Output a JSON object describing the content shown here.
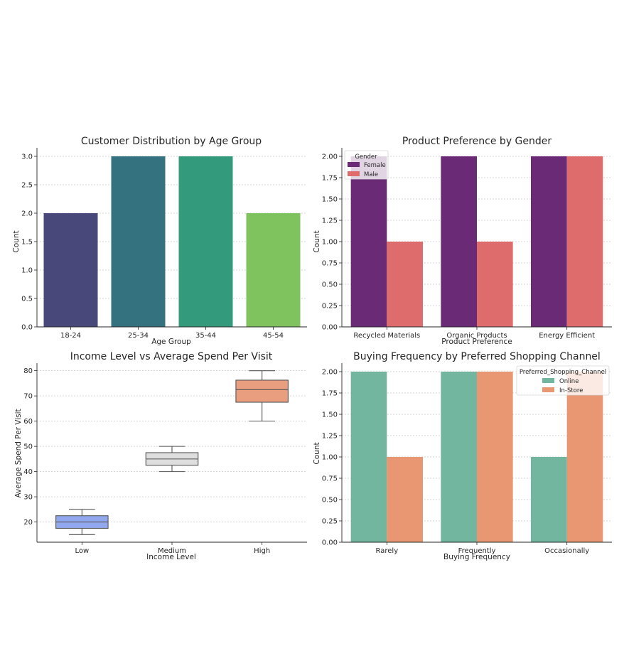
{
  "chart_data": [
    {
      "type": "bar",
      "title": "Customer Distribution by Age Group",
      "xlabel": "Age Group",
      "ylabel": "Count",
      "categories": [
        "18-24",
        "25-34",
        "35-44",
        "45-54"
      ],
      "values": [
        2,
        3,
        3,
        2
      ],
      "colors": [
        "#48487a",
        "#35727f",
        "#339a7b",
        "#7fc35e"
      ],
      "ylim": [
        0,
        3.15
      ],
      "yticks": [
        "0.0",
        "0.5",
        "1.0",
        "1.5",
        "2.0",
        "2.5",
        "3.0"
      ],
      "grid": true
    },
    {
      "type": "bar",
      "title": "Product Preference by Gender",
      "xlabel": "Product Preference",
      "ylabel": "Count",
      "categories": [
        "Recycled Materials",
        "Organic Products",
        "Energy Efficient"
      ],
      "series": [
        {
          "name": "Female",
          "values": [
            2,
            2,
            2
          ],
          "color": "#6a2a75"
        },
        {
          "name": "Male",
          "values": [
            1,
            1,
            2
          ],
          "color": "#de6c6c"
        }
      ],
      "legend_title": "Gender",
      "legend_position": "top-left",
      "ylim": [
        0,
        2.1
      ],
      "yticks": [
        "0.00",
        "0.25",
        "0.50",
        "0.75",
        "1.00",
        "1.25",
        "1.50",
        "1.75",
        "2.00"
      ],
      "grid": true
    },
    {
      "type": "box",
      "title": "Income Level vs Average Spend Per Visit",
      "xlabel": "Income Level",
      "ylabel": "Average Spend Per Visit",
      "categories": [
        "Low",
        "Medium",
        "High"
      ],
      "boxes": [
        {
          "min": 15,
          "q1": 17.5,
          "median": 20,
          "q3": 22.5,
          "max": 25,
          "color": "#91a8ee"
        },
        {
          "min": 40,
          "q1": 42.5,
          "median": 45,
          "q3": 47.5,
          "max": 50,
          "color": "#dedede"
        },
        {
          "min": 60,
          "q1": 67.5,
          "median": 72.5,
          "q3": 76.25,
          "max": 80,
          "color": "#e99e80"
        }
      ],
      "ylim": [
        12,
        83
      ],
      "yticks": [
        "20",
        "30",
        "40",
        "50",
        "60",
        "70",
        "80"
      ],
      "grid": true
    },
    {
      "type": "bar",
      "title": "Buying Frequency by Preferred Shopping Channel",
      "xlabel": "Buying Frequency",
      "ylabel": "Count",
      "categories": [
        "Rarely",
        "Frequently",
        "Occasionally"
      ],
      "series": [
        {
          "name": "Online",
          "values": [
            2,
            2,
            1
          ],
          "color": "#72b6a0"
        },
        {
          "name": "In-Store",
          "values": [
            1,
            2,
            2
          ],
          "color": "#e99672"
        }
      ],
      "legend_title": "Preferred_Shopping_Channel",
      "legend_position": "top-right",
      "ylim": [
        0,
        2.1
      ],
      "yticks": [
        "0.00",
        "0.25",
        "0.50",
        "0.75",
        "1.00",
        "1.25",
        "1.50",
        "1.75",
        "2.00"
      ],
      "grid": true
    }
  ]
}
